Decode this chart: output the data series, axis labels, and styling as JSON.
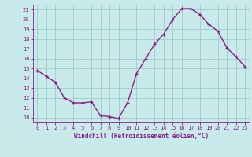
{
  "x": [
    0,
    1,
    2,
    3,
    4,
    5,
    6,
    7,
    8,
    9,
    10,
    11,
    12,
    13,
    14,
    15,
    16,
    17,
    18,
    19,
    20,
    21,
    22,
    23
  ],
  "y": [
    14.8,
    14.2,
    13.6,
    12.0,
    11.5,
    11.5,
    11.6,
    10.2,
    10.1,
    9.9,
    11.5,
    14.5,
    16.0,
    17.5,
    18.5,
    20.0,
    21.1,
    21.1,
    20.5,
    19.5,
    18.8,
    17.1,
    16.2,
    15.2
  ],
  "line_color": "#882288",
  "marker": "+",
  "marker_size": 3.5,
  "bg_color": "#c8eaea",
  "grid_color": "#a0cccc",
  "xlabel": "Windchill (Refroidissement éolien,°C)",
  "xlabel_color": "#882288",
  "tick_color": "#882288",
  "ylim": [
    9.5,
    21.5
  ],
  "yticks": [
    10,
    11,
    12,
    13,
    14,
    15,
    16,
    17,
    18,
    19,
    20,
    21
  ],
  "xticks": [
    0,
    1,
    2,
    3,
    4,
    5,
    6,
    7,
    8,
    9,
    10,
    11,
    12,
    13,
    14,
    15,
    16,
    17,
    18,
    19,
    20,
    21,
    22,
    23
  ],
  "xlim": [
    -0.5,
    23.5
  ],
  "line_width": 1.0
}
